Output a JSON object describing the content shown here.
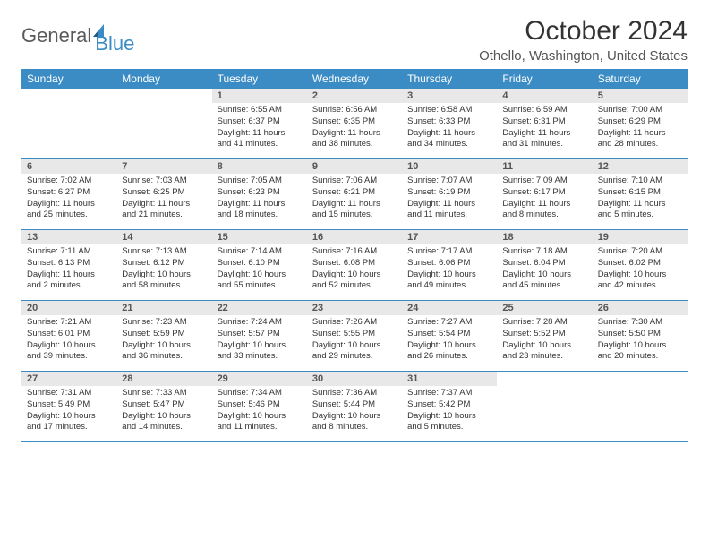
{
  "logo": {
    "text1": "General",
    "text2": "Blue"
  },
  "title": "October 2024",
  "location": "Othello, Washington, United States",
  "weekdays": [
    "Sunday",
    "Monday",
    "Tuesday",
    "Wednesday",
    "Thursday",
    "Friday",
    "Saturday"
  ],
  "colors": {
    "brand_blue": "#3b8bc4",
    "header_gray": "#e8e8e8",
    "text": "#333333",
    "logo_gray": "#5a5a5a"
  },
  "layout": {
    "columns": 7,
    "rows": 5,
    "blank_leading": 2,
    "blank_trailing": 2
  },
  "days": [
    {
      "n": 1,
      "sr": "6:55 AM",
      "ss": "6:37 PM",
      "dl": "11 hours and 41 minutes."
    },
    {
      "n": 2,
      "sr": "6:56 AM",
      "ss": "6:35 PM",
      "dl": "11 hours and 38 minutes."
    },
    {
      "n": 3,
      "sr": "6:58 AM",
      "ss": "6:33 PM",
      "dl": "11 hours and 34 minutes."
    },
    {
      "n": 4,
      "sr": "6:59 AM",
      "ss": "6:31 PM",
      "dl": "11 hours and 31 minutes."
    },
    {
      "n": 5,
      "sr": "7:00 AM",
      "ss": "6:29 PM",
      "dl": "11 hours and 28 minutes."
    },
    {
      "n": 6,
      "sr": "7:02 AM",
      "ss": "6:27 PM",
      "dl": "11 hours and 25 minutes."
    },
    {
      "n": 7,
      "sr": "7:03 AM",
      "ss": "6:25 PM",
      "dl": "11 hours and 21 minutes."
    },
    {
      "n": 8,
      "sr": "7:05 AM",
      "ss": "6:23 PM",
      "dl": "11 hours and 18 minutes."
    },
    {
      "n": 9,
      "sr": "7:06 AM",
      "ss": "6:21 PM",
      "dl": "11 hours and 15 minutes."
    },
    {
      "n": 10,
      "sr": "7:07 AM",
      "ss": "6:19 PM",
      "dl": "11 hours and 11 minutes."
    },
    {
      "n": 11,
      "sr": "7:09 AM",
      "ss": "6:17 PM",
      "dl": "11 hours and 8 minutes."
    },
    {
      "n": 12,
      "sr": "7:10 AM",
      "ss": "6:15 PM",
      "dl": "11 hours and 5 minutes."
    },
    {
      "n": 13,
      "sr": "7:11 AM",
      "ss": "6:13 PM",
      "dl": "11 hours and 2 minutes."
    },
    {
      "n": 14,
      "sr": "7:13 AM",
      "ss": "6:12 PM",
      "dl": "10 hours and 58 minutes."
    },
    {
      "n": 15,
      "sr": "7:14 AM",
      "ss": "6:10 PM",
      "dl": "10 hours and 55 minutes."
    },
    {
      "n": 16,
      "sr": "7:16 AM",
      "ss": "6:08 PM",
      "dl": "10 hours and 52 minutes."
    },
    {
      "n": 17,
      "sr": "7:17 AM",
      "ss": "6:06 PM",
      "dl": "10 hours and 49 minutes."
    },
    {
      "n": 18,
      "sr": "7:18 AM",
      "ss": "6:04 PM",
      "dl": "10 hours and 45 minutes."
    },
    {
      "n": 19,
      "sr": "7:20 AM",
      "ss": "6:02 PM",
      "dl": "10 hours and 42 minutes."
    },
    {
      "n": 20,
      "sr": "7:21 AM",
      "ss": "6:01 PM",
      "dl": "10 hours and 39 minutes."
    },
    {
      "n": 21,
      "sr": "7:23 AM",
      "ss": "5:59 PM",
      "dl": "10 hours and 36 minutes."
    },
    {
      "n": 22,
      "sr": "7:24 AM",
      "ss": "5:57 PM",
      "dl": "10 hours and 33 minutes."
    },
    {
      "n": 23,
      "sr": "7:26 AM",
      "ss": "5:55 PM",
      "dl": "10 hours and 29 minutes."
    },
    {
      "n": 24,
      "sr": "7:27 AM",
      "ss": "5:54 PM",
      "dl": "10 hours and 26 minutes."
    },
    {
      "n": 25,
      "sr": "7:28 AM",
      "ss": "5:52 PM",
      "dl": "10 hours and 23 minutes."
    },
    {
      "n": 26,
      "sr": "7:30 AM",
      "ss": "5:50 PM",
      "dl": "10 hours and 20 minutes."
    },
    {
      "n": 27,
      "sr": "7:31 AM",
      "ss": "5:49 PM",
      "dl": "10 hours and 17 minutes."
    },
    {
      "n": 28,
      "sr": "7:33 AM",
      "ss": "5:47 PM",
      "dl": "10 hours and 14 minutes."
    },
    {
      "n": 29,
      "sr": "7:34 AM",
      "ss": "5:46 PM",
      "dl": "10 hours and 11 minutes."
    },
    {
      "n": 30,
      "sr": "7:36 AM",
      "ss": "5:44 PM",
      "dl": "10 hours and 8 minutes."
    },
    {
      "n": 31,
      "sr": "7:37 AM",
      "ss": "5:42 PM",
      "dl": "10 hours and 5 minutes."
    }
  ],
  "labels": {
    "sunrise": "Sunrise: ",
    "sunset": "Sunset: ",
    "daylight": "Daylight: "
  }
}
